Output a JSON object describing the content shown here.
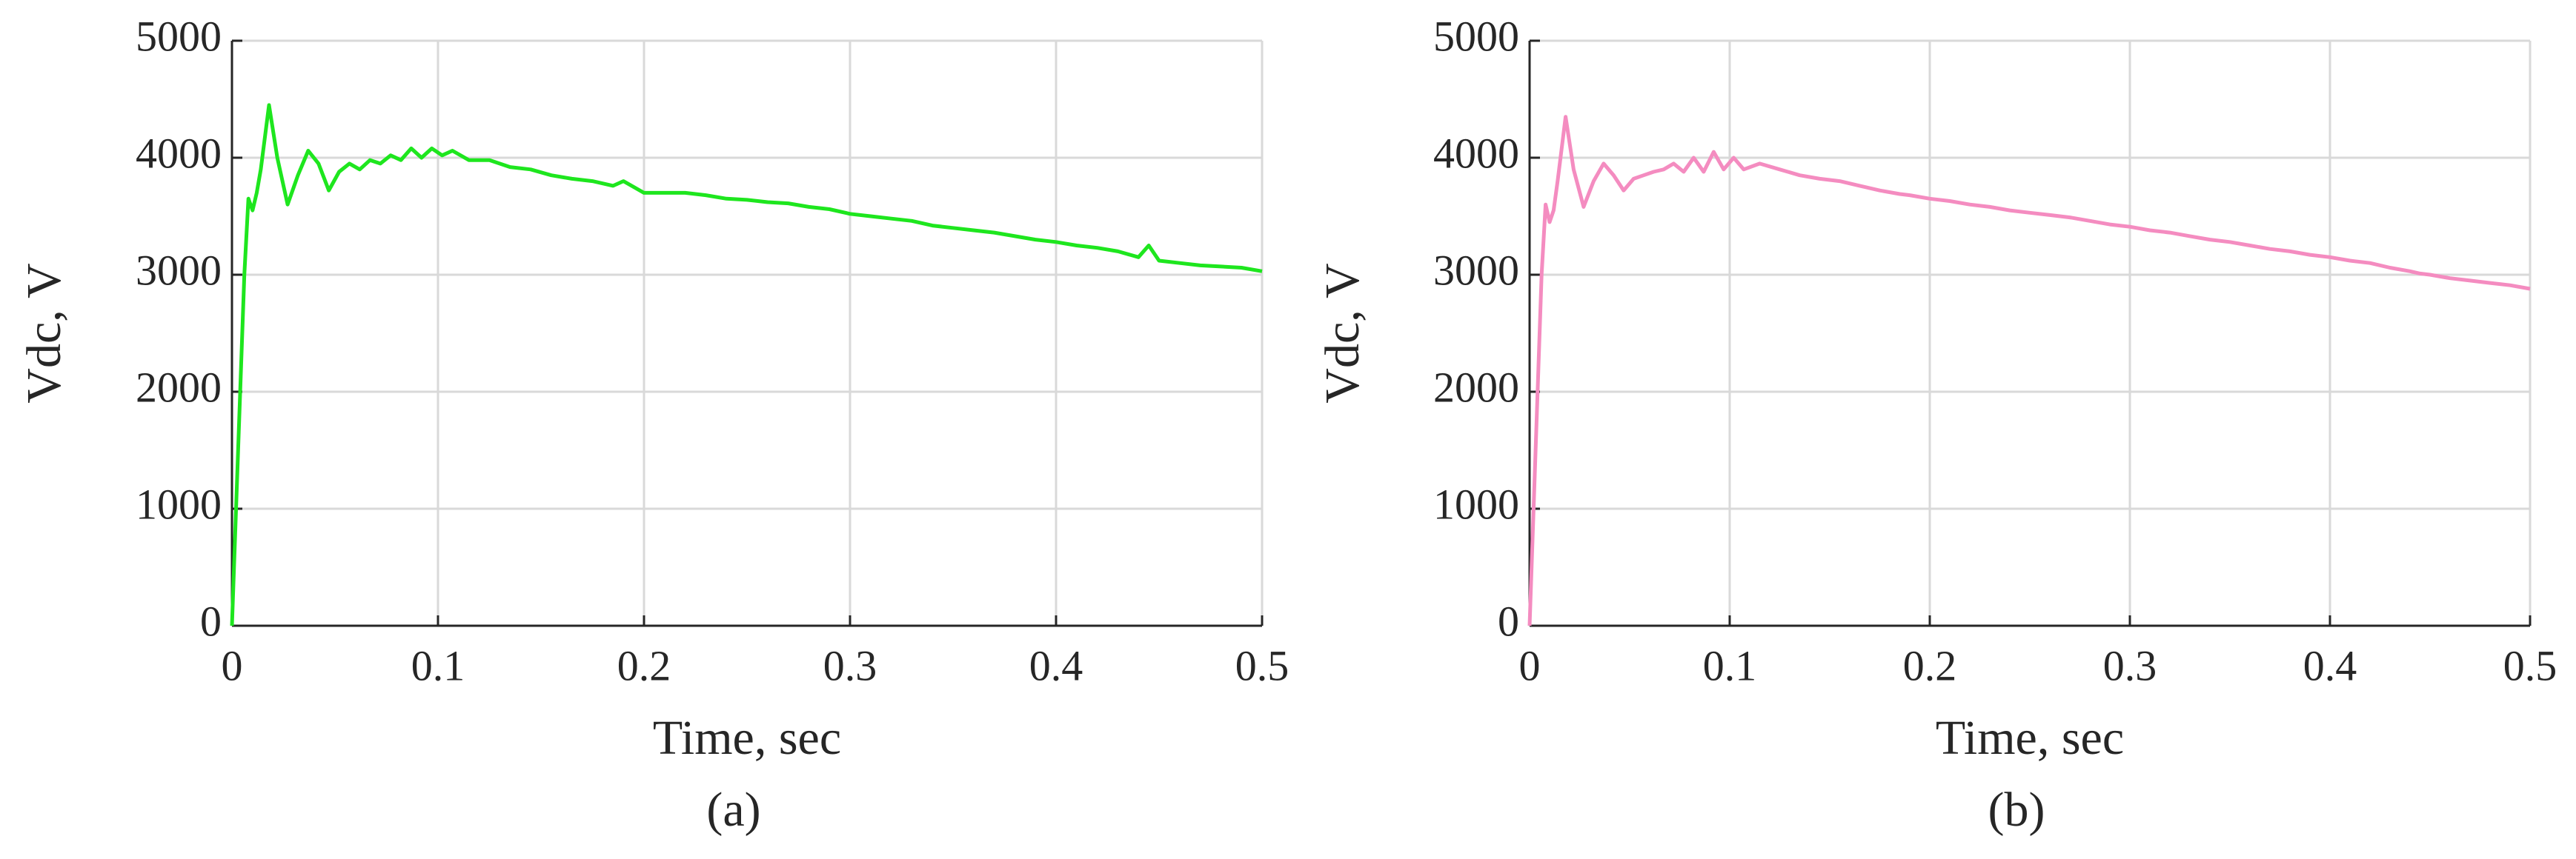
{
  "chart_data": [
    {
      "type": "line",
      "xlabel": "Time, sec",
      "ylabel": "Vdc, V",
      "caption": "(a)",
      "color": "#1ee61e",
      "grid": true,
      "xlim": [
        0,
        0.5
      ],
      "xticks": [
        0,
        0.1,
        0.2,
        0.3,
        0.4,
        0.5
      ],
      "ylim": [
        0,
        5000
      ],
      "yticks": [
        0,
        1000,
        2000,
        3000,
        4000,
        5000
      ],
      "x": [
        0,
        0.003,
        0.006,
        0.008,
        0.01,
        0.012,
        0.014,
        0.018,
        0.022,
        0.027,
        0.032,
        0.037,
        0.042,
        0.047,
        0.052,
        0.057,
        0.062,
        0.067,
        0.072,
        0.077,
        0.082,
        0.087,
        0.092,
        0.097,
        0.102,
        0.107,
        0.115,
        0.125,
        0.135,
        0.145,
        0.155,
        0.165,
        0.175,
        0.185,
        0.19,
        0.2,
        0.21,
        0.22,
        0.23,
        0.24,
        0.25,
        0.26,
        0.27,
        0.28,
        0.29,
        0.3,
        0.31,
        0.32,
        0.33,
        0.34,
        0.35,
        0.36,
        0.37,
        0.38,
        0.39,
        0.4,
        0.41,
        0.42,
        0.43,
        0.44,
        0.445,
        0.45,
        0.46,
        0.47,
        0.48,
        0.49,
        0.5
      ],
      "values": [
        0,
        1500,
        3000,
        3650,
        3550,
        3700,
        3900,
        4450,
        4000,
        3600,
        3850,
        4060,
        3950,
        3720,
        3880,
        3950,
        3900,
        3980,
        3950,
        4020,
        3980,
        4080,
        4000,
        4080,
        4020,
        4060,
        3980,
        3980,
        3920,
        3900,
        3850,
        3820,
        3800,
        3760,
        3800,
        3700,
        3700,
        3700,
        3680,
        3650,
        3640,
        3620,
        3610,
        3580,
        3560,
        3520,
        3500,
        3480,
        3460,
        3420,
        3400,
        3380,
        3360,
        3330,
        3300,
        3280,
        3250,
        3230,
        3200,
        3150,
        3250,
        3120,
        3100,
        3080,
        3070,
        3060,
        3030
      ]
    },
    {
      "type": "line",
      "xlabel": "Time, sec",
      "ylabel": "Vdc, V",
      "caption": "(b)",
      "color": "#f48cc0",
      "grid": true,
      "xlim": [
        0,
        0.5
      ],
      "xticks": [
        0,
        0.1,
        0.2,
        0.3,
        0.4,
        0.5
      ],
      "ylim": [
        0,
        5000
      ],
      "yticks": [
        0,
        1000,
        2000,
        3000,
        4000,
        5000
      ],
      "x": [
        0,
        0.003,
        0.006,
        0.008,
        0.01,
        0.012,
        0.014,
        0.018,
        0.022,
        0.027,
        0.032,
        0.037,
        0.042,
        0.047,
        0.052,
        0.057,
        0.062,
        0.067,
        0.072,
        0.077,
        0.082,
        0.087,
        0.092,
        0.097,
        0.102,
        0.107,
        0.115,
        0.125,
        0.135,
        0.145,
        0.155,
        0.165,
        0.175,
        0.185,
        0.19,
        0.2,
        0.21,
        0.22,
        0.23,
        0.24,
        0.25,
        0.26,
        0.27,
        0.28,
        0.29,
        0.3,
        0.31,
        0.32,
        0.33,
        0.34,
        0.35,
        0.36,
        0.37,
        0.38,
        0.39,
        0.4,
        0.41,
        0.42,
        0.43,
        0.44,
        0.445,
        0.45,
        0.46,
        0.47,
        0.48,
        0.49,
        0.5
      ],
      "values": [
        0,
        1500,
        3000,
        3600,
        3450,
        3550,
        3800,
        4350,
        3900,
        3580,
        3800,
        3950,
        3850,
        3720,
        3820,
        3850,
        3880,
        3900,
        3950,
        3880,
        4000,
        3880,
        4050,
        3900,
        4000,
        3900,
        3950,
        3900,
        3850,
        3820,
        3800,
        3760,
        3720,
        3690,
        3680,
        3650,
        3630,
        3600,
        3580,
        3550,
        3530,
        3510,
        3490,
        3460,
        3430,
        3410,
        3380,
        3360,
        3330,
        3300,
        3280,
        3250,
        3220,
        3200,
        3170,
        3150,
        3120,
        3100,
        3060,
        3030,
        3010,
        3000,
        2970,
        2950,
        2930,
        2910,
        2880
      ]
    }
  ]
}
